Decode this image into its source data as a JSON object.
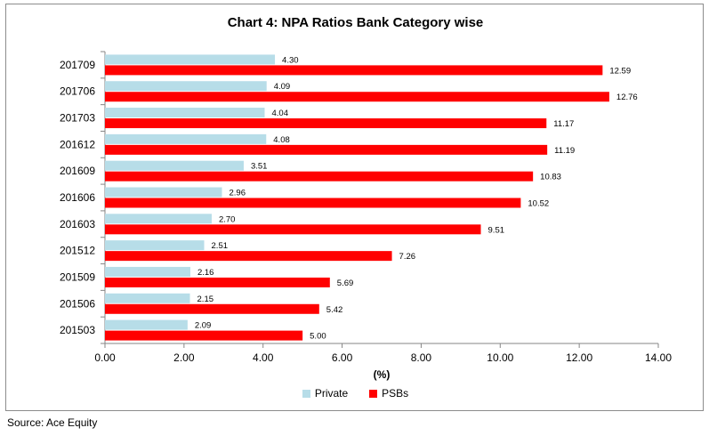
{
  "chart_data": {
    "type": "bar",
    "orientation": "horizontal",
    "title": "Chart 4: NPA Ratios Bank Category wise",
    "xlabel": "(%)",
    "ylabel": "",
    "xlim": [
      0,
      14
    ],
    "x_ticks": [
      "0.00",
      "2.00",
      "4.00",
      "6.00",
      "8.00",
      "10.00",
      "12.00",
      "14.00"
    ],
    "categories": [
      "201709",
      "201706",
      "201703",
      "201612",
      "201609",
      "201606",
      "201603",
      "201512",
      "201509",
      "201506",
      "201503"
    ],
    "series": [
      {
        "name": "Private",
        "color": "#b7dde8",
        "values": [
          4.3,
          4.09,
          4.04,
          4.08,
          3.51,
          2.96,
          2.7,
          2.51,
          2.16,
          2.15,
          2.09
        ]
      },
      {
        "name": "PSBs",
        "color": "#ff0000",
        "values": [
          12.59,
          12.76,
          11.17,
          11.19,
          10.83,
          10.52,
          9.51,
          7.26,
          5.69,
          5.42,
          5.0
        ]
      }
    ],
    "grid": false,
    "legend_position": "bottom"
  },
  "source_note": "Source: Ace Equity"
}
